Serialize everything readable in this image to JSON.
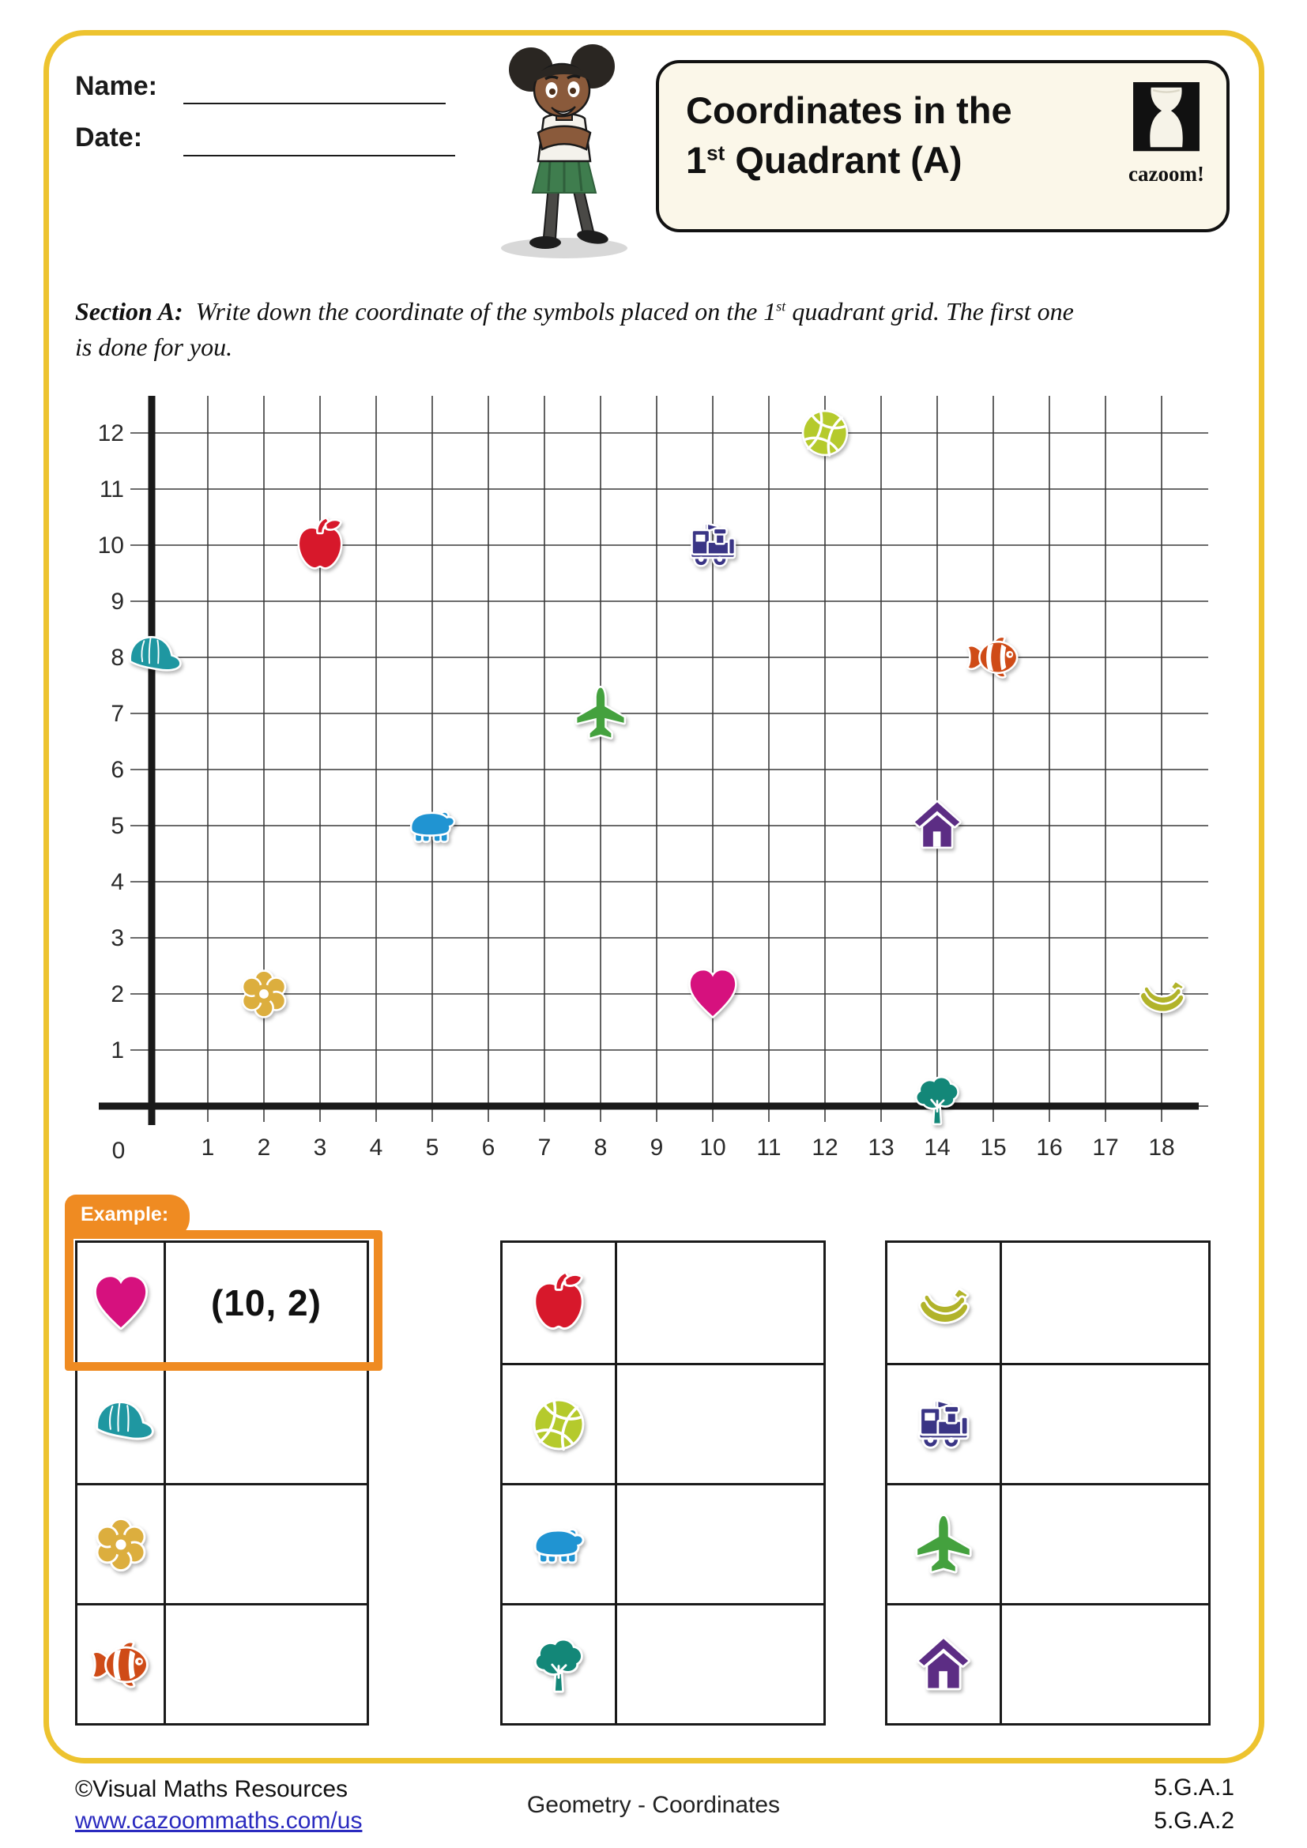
{
  "header": {
    "name_label": "Name:",
    "date_label": "Date:",
    "title_line1": "Coordinates in the",
    "title_line2_num": "1",
    "title_line2_sup": "st",
    "title_line2_rest": " Quadrant (A)",
    "logo_text": "cazoom!"
  },
  "section_a": {
    "label": "Section A:",
    "instr_part1": "Write down the coordinate of the symbols placed on the 1",
    "instr_sup": "st",
    "instr_part2": " quadrant grid. The first one",
    "instr_line2": "is done for you."
  },
  "chart_data": {
    "type": "scatter",
    "title": "First quadrant coordinate grid with symbol stickers",
    "xlabel": "",
    "ylabel": "",
    "xlim": [
      0,
      18
    ],
    "ylim": [
      0,
      12
    ],
    "x_ticks": [
      0,
      1,
      2,
      3,
      4,
      5,
      6,
      7,
      8,
      9,
      10,
      11,
      12,
      13,
      14,
      15,
      16,
      17,
      18
    ],
    "y_ticks": [
      0,
      1,
      2,
      3,
      4,
      5,
      6,
      7,
      8,
      9,
      10,
      11,
      12
    ],
    "grid": true,
    "origin_label": "0",
    "points": [
      {
        "symbol": "cap",
        "color": "#1f97a1",
        "x": 0,
        "y": 8
      },
      {
        "symbol": "flower",
        "color": "#dcae3e",
        "x": 2,
        "y": 2
      },
      {
        "symbol": "apple",
        "color": "#d7182b",
        "x": 3,
        "y": 10
      },
      {
        "symbol": "bear",
        "color": "#2094d2",
        "x": 5,
        "y": 5
      },
      {
        "symbol": "airplane",
        "color": "#44a13e",
        "x": 8,
        "y": 7
      },
      {
        "symbol": "train",
        "color": "#3a3585",
        "x": 10,
        "y": 10
      },
      {
        "symbol": "heart",
        "color": "#d6117e",
        "x": 10,
        "y": 2
      },
      {
        "symbol": "basketball",
        "color": "#b5ca2c",
        "x": 12,
        "y": 12
      },
      {
        "symbol": "house",
        "color": "#5c2d84",
        "x": 14,
        "y": 5
      },
      {
        "symbol": "tree",
        "color": "#138778",
        "x": 14,
        "y": 0
      },
      {
        "symbol": "fish",
        "color": "#cf4b17",
        "x": 15,
        "y": 8
      },
      {
        "symbol": "bananas",
        "color": "#b1b32a",
        "x": 18,
        "y": 2
      }
    ]
  },
  "example": {
    "tab_label": "Example:",
    "answer": "(10, 2)"
  },
  "tables": [
    {
      "rows": [
        {
          "symbol": "heart",
          "answer": "(10, 2)",
          "is_example": true
        },
        {
          "symbol": "cap",
          "answer": ""
        },
        {
          "symbol": "flower",
          "answer": ""
        },
        {
          "symbol": "fish",
          "answer": ""
        }
      ]
    },
    {
      "rows": [
        {
          "symbol": "apple",
          "answer": ""
        },
        {
          "symbol": "basketball",
          "answer": ""
        },
        {
          "symbol": "bear",
          "answer": ""
        },
        {
          "symbol": "tree",
          "answer": ""
        }
      ]
    },
    {
      "rows": [
        {
          "symbol": "bananas",
          "answer": ""
        },
        {
          "symbol": "train",
          "answer": ""
        },
        {
          "symbol": "airplane",
          "answer": ""
        },
        {
          "symbol": "house",
          "answer": ""
        }
      ]
    }
  ],
  "footer": {
    "copyright": "©Visual Maths Resources",
    "url": "www.cazoommaths.com/us",
    "center": "Geometry - Coordinates",
    "standard1": "5.G.A.1",
    "standard2": "5.G.A.2"
  }
}
